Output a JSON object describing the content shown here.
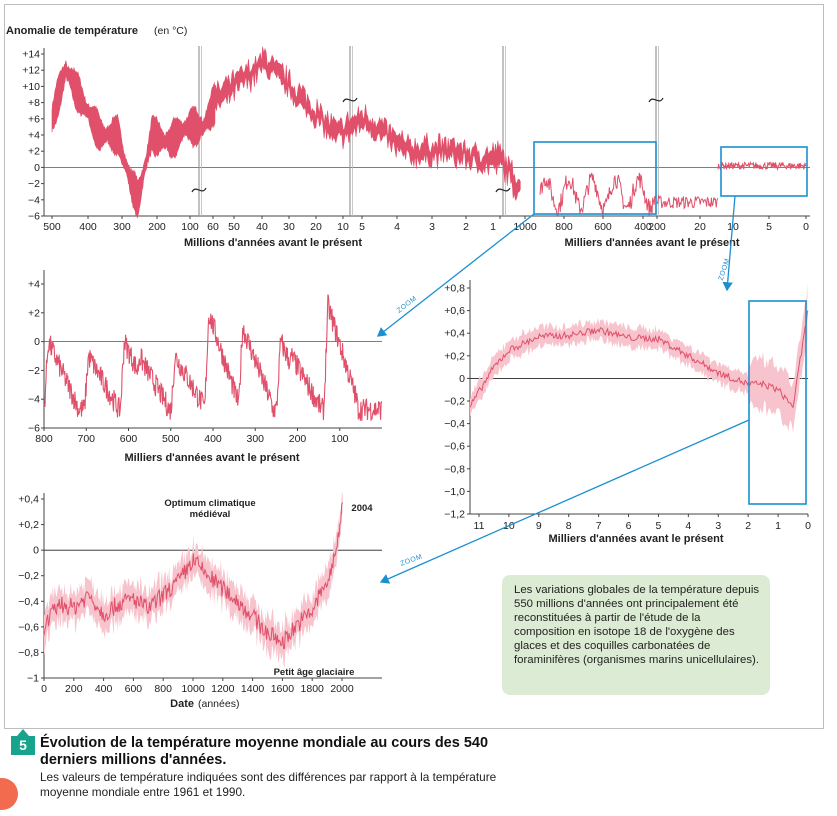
{
  "figure": {
    "number": "5",
    "title": "Évolution de la température moyenne mondiale au cours des 540 derniers millions d'années.",
    "caption": "Les valeurs de température indiquées sont des différences par rapport à la température moyenne mondiale entre 1961 et 1990.",
    "info_box": "Les variations globales de la température depuis 550 millions d'années ont principalement été reconstituées à partir de l'étude de la composition en isotope 18 de l'oxygène des glaces et des coquilles carbonatées de foraminifères (organismes marins unicellulaires).",
    "zoom_label": "ZOOM",
    "colors": {
      "series": "#e0506a",
      "band": "#f7c3cc",
      "accent": "#1c8fd1",
      "info_bg": "#dcebd3",
      "badge": "#18a38d"
    }
  },
  "chart_data": [
    {
      "id": "overview",
      "type": "line",
      "title_bold": "Anomalie de température",
      "title_unit": "(en °C)",
      "y_ticks": [
        "+14",
        "+12",
        "+10",
        "+8",
        "+6",
        "+4",
        "+2",
        "0",
        "−2",
        "−4",
        "−6"
      ],
      "ylim": [
        -6,
        14
      ],
      "segments": [
        {
          "xlabel": "Millions d'années avant le présent",
          "ticks": [
            "500",
            "400",
            "300",
            "200",
            "100",
            "60",
            "50",
            "40",
            "30",
            "20",
            "10",
            "5",
            "4",
            "3",
            "2",
            "1"
          ]
        },
        {
          "xlabel": "Milliers d'années avant le présent",
          "ticks": [
            "1000",
            "800",
            "600",
            "400",
            "200",
            "20",
            "10",
            "5",
            "0"
          ]
        }
      ],
      "series_profile": {
        "x": [
          540,
          500,
          450,
          400,
          350,
          310,
          290,
          250,
          200,
          150,
          100,
          66,
          55,
          50,
          40,
          34,
          25,
          15,
          10,
          5,
          3,
          2,
          1
        ],
        "y": [
          6,
          12,
          8,
          4,
          4,
          -2,
          -4,
          4,
          3,
          5,
          5,
          8,
          13,
          10,
          4,
          6,
          2,
          2,
          1,
          1,
          -1,
          -2,
          -2
        ]
      }
    },
    {
      "id": "zoom-800ka",
      "type": "line",
      "xlabel": "Milliers d'années avant le présent",
      "x_ticks": [
        "800",
        "700",
        "600",
        "500",
        "400",
        "300",
        "200",
        "100"
      ],
      "y_ticks": [
        "+4",
        "+2",
        "0",
        "−2",
        "−4",
        "−6"
      ],
      "xlim": [
        800,
        0
      ],
      "ylim": [
        -6,
        4
      ],
      "interglacial_peaks_ka": [
        790,
        695,
        610,
        575,
        490,
        410,
        330,
        240,
        215,
        128
      ],
      "peak_values": [
        0,
        -1,
        0,
        -1,
        -1,
        2,
        1,
        0,
        -1,
        2.5
      ],
      "glacial_minimum": -5
    },
    {
      "id": "zoom-12ka",
      "type": "area",
      "xlabel": "Milliers d'années avant le présent",
      "x_ticks": [
        "11",
        "10",
        "9",
        "8",
        "7",
        "6",
        "5",
        "4",
        "3",
        "2",
        "1",
        "0"
      ],
      "y_ticks": [
        "+0,8",
        "+0,6",
        "+0,4",
        "+0,2",
        "0",
        "−0,2",
        "−0,4",
        "−0,6",
        "−0,8",
        "−1,0",
        "−1,2"
      ],
      "xlim": [
        11.3,
        0
      ],
      "ylim": [
        -1.2,
        0.8
      ],
      "x": [
        11.3,
        10.5,
        10,
        9,
        8,
        7,
        6,
        5,
        4,
        3,
        2,
        1.5,
        1,
        0.5,
        0
      ],
      "y": [
        -0.25,
        0.1,
        0.25,
        0.37,
        0.38,
        0.43,
        0.36,
        0.35,
        0.2,
        0.05,
        -0.05,
        -0.05,
        -0.1,
        -0.25,
        0.6
      ]
    },
    {
      "id": "zoom-2000y",
      "type": "area",
      "xlabel": "Date",
      "xlabel_unit": "(années)",
      "x_ticks": [
        "0",
        "200",
        "400",
        "600",
        "800",
        "1000",
        "1200",
        "1400",
        "1600",
        "1800",
        "2000"
      ],
      "y_ticks": [
        "+0,4",
        "+0,2",
        "0",
        "−0,2",
        "−0,4",
        "−0,6",
        "−0,8",
        "−1"
      ],
      "xlim": [
        0,
        2000
      ],
      "ylim": [
        -1,
        0.4
      ],
      "annotations": [
        "Optimum climatique médiéval",
        "Petit âge glaciaire",
        "2004"
      ],
      "x": [
        0,
        100,
        200,
        300,
        400,
        500,
        600,
        700,
        800,
        900,
        1000,
        1100,
        1200,
        1300,
        1400,
        1500,
        1600,
        1700,
        1800,
        1850,
        1900,
        1950,
        2004
      ],
      "y": [
        -0.6,
        -0.42,
        -0.45,
        -0.35,
        -0.5,
        -0.42,
        -0.38,
        -0.46,
        -0.35,
        -0.25,
        -0.08,
        -0.2,
        -0.3,
        -0.4,
        -0.52,
        -0.65,
        -0.72,
        -0.58,
        -0.48,
        -0.35,
        -0.25,
        -0.08,
        0.35
      ]
    }
  ]
}
